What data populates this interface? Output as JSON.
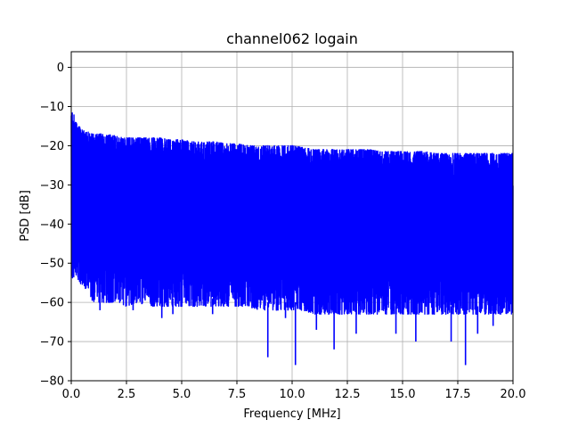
{
  "chart_data": {
    "type": "line",
    "title": "channel062 logain",
    "xlabel": "Frequency [MHz]",
    "ylabel": "PSD [dB]",
    "xlim": [
      0,
      20
    ],
    "ylim": [
      -80,
      4
    ],
    "xticks": [
      "0.0",
      "2.5",
      "5.0",
      "7.5",
      "10.0",
      "12.5",
      "15.0",
      "17.5",
      "20.0"
    ],
    "yticks": [
      "0",
      "−10",
      "−20",
      "−30",
      "−40",
      "−50",
      "−60",
      "−70",
      "−80"
    ],
    "grid": true,
    "series": [
      {
        "color": "#0000ff",
        "style": "dense noisy PSD trace",
        "x": [
          0.0,
          0.1,
          0.2,
          0.5,
          1.0,
          1.5,
          2.0,
          2.5,
          3.0,
          3.5,
          4.0,
          4.5,
          5.0,
          5.5,
          6.0,
          6.5,
          7.0,
          7.5,
          8.0,
          8.5,
          9.0,
          9.5,
          10.0,
          10.5,
          11.0,
          11.5,
          12.0,
          12.5,
          13.0,
          13.5,
          14.0,
          14.5,
          15.0,
          15.5,
          16.0,
          16.5,
          17.0,
          17.5,
          18.0,
          18.5,
          19.0,
          19.5,
          20.0
        ],
        "upper_envelope": [
          -12,
          -11,
          -14,
          -16,
          -17,
          -17,
          -17.5,
          -18,
          -18,
          -18,
          -18,
          -18.5,
          -18.5,
          -19,
          -19,
          -19,
          -19.5,
          -19.5,
          -20,
          -20,
          -20,
          -20,
          -20,
          -20.5,
          -21,
          -21,
          -21,
          -21,
          -21,
          -21,
          -21.5,
          -21.5,
          -21.5,
          -21.5,
          -21.5,
          -22,
          -22,
          -22,
          -22,
          -22,
          -22,
          -22,
          -22
        ],
        "lower_envelope": [
          -55,
          -54,
          -53,
          -56,
          -60,
          -60,
          -60,
          -61,
          -60,
          -61,
          -61,
          -61,
          -61,
          -61,
          -61,
          -61,
          -61,
          -61,
          -61,
          -62,
          -62,
          -62,
          -62,
          -62,
          -63,
          -63,
          -63,
          -63,
          -63,
          -63,
          -63,
          -63,
          -63,
          -63,
          -63,
          -63,
          -63,
          -63,
          -63,
          -63,
          -63,
          -63,
          -63
        ],
        "deep_dips": [
          {
            "x": 1.3,
            "y": -62
          },
          {
            "x": 2.8,
            "y": -62
          },
          {
            "x": 4.1,
            "y": -64
          },
          {
            "x": 4.6,
            "y": -63
          },
          {
            "x": 6.4,
            "y": -63
          },
          {
            "x": 8.9,
            "y": -74
          },
          {
            "x": 9.7,
            "y": -64
          },
          {
            "x": 10.15,
            "y": -76
          },
          {
            "x": 11.1,
            "y": -67
          },
          {
            "x": 11.9,
            "y": -72
          },
          {
            "x": 12.9,
            "y": -68
          },
          {
            "x": 14.7,
            "y": -68
          },
          {
            "x": 15.6,
            "y": -70
          },
          {
            "x": 17.2,
            "y": -70
          },
          {
            "x": 17.85,
            "y": -76
          },
          {
            "x": 18.4,
            "y": -68
          },
          {
            "x": 19.1,
            "y": -66
          }
        ]
      }
    ]
  }
}
